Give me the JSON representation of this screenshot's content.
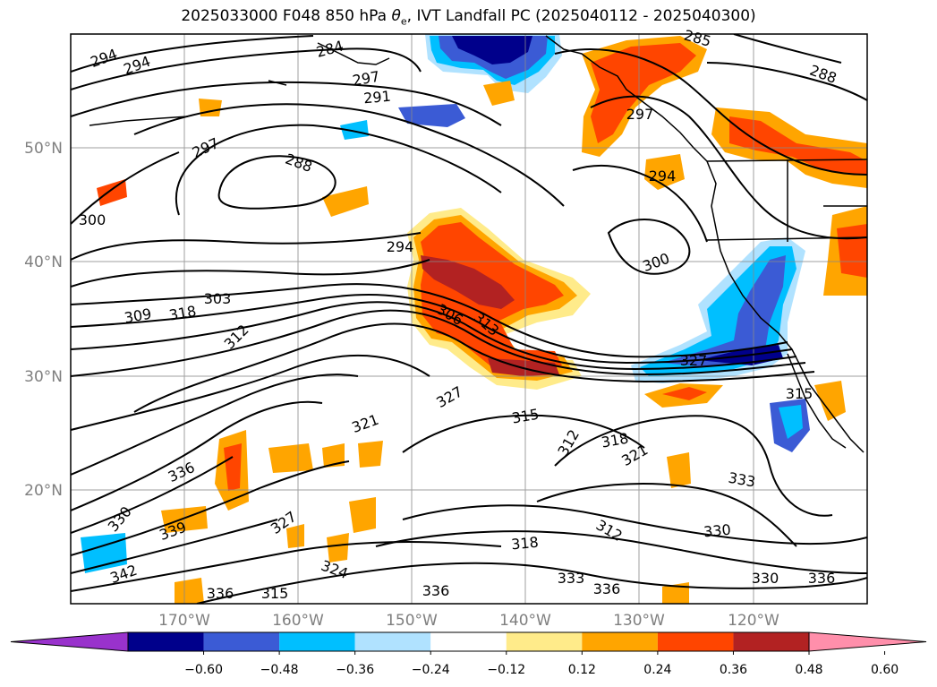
{
  "figure": {
    "title_prefix": "2025033000 F048 850 hPa ",
    "title_symbol": "θ",
    "title_subscript": "e",
    "title_suffix": ", IVT Landfall PC (2025040112 - 2025040300)"
  },
  "map": {
    "projection": "equirectangular",
    "lon_range": [
      -180,
      -110
    ],
    "lat_range": [
      10,
      60
    ],
    "grid": true,
    "lat_labels": [
      "20°N",
      "30°N",
      "40°N",
      "50°N"
    ],
    "lon_labels": [
      "170°W",
      "160°W",
      "150°W",
      "140°W",
      "130°W",
      "120°W"
    ],
    "contour_variable": "850 hPa equivalent potential temperature",
    "contour_labels": [
      "294",
      "294",
      "284",
      "297",
      "291",
      "297",
      "288",
      "300",
      "294",
      "294",
      "297",
      "300",
      "303",
      "309",
      "318",
      "312",
      "306",
      "313",
      "327",
      "327",
      "321",
      "315",
      "312",
      "318",
      "321",
      "315",
      "333",
      "336",
      "330",
      "327",
      "324",
      "318",
      "312",
      "330",
      "333",
      "336",
      "336",
      "336",
      "315",
      "330",
      "336",
      "285",
      "288",
      "342",
      "339"
    ]
  },
  "colorbar": {
    "ticks": [
      "−0.60",
      "−0.48",
      "−0.36",
      "−0.24",
      "−0.12",
      "0.12",
      "0.24",
      "0.36",
      "0.48",
      "0.60"
    ],
    "colors": [
      "#9932cc",
      "#00008b",
      "#3b5bd5",
      "#00bfff",
      "#b0e2ff",
      "#ffffff",
      "#ffeb8a",
      "#ffa500",
      "#ff4500",
      "#b22222",
      "#ff8fab"
    ],
    "extend": "both"
  }
}
